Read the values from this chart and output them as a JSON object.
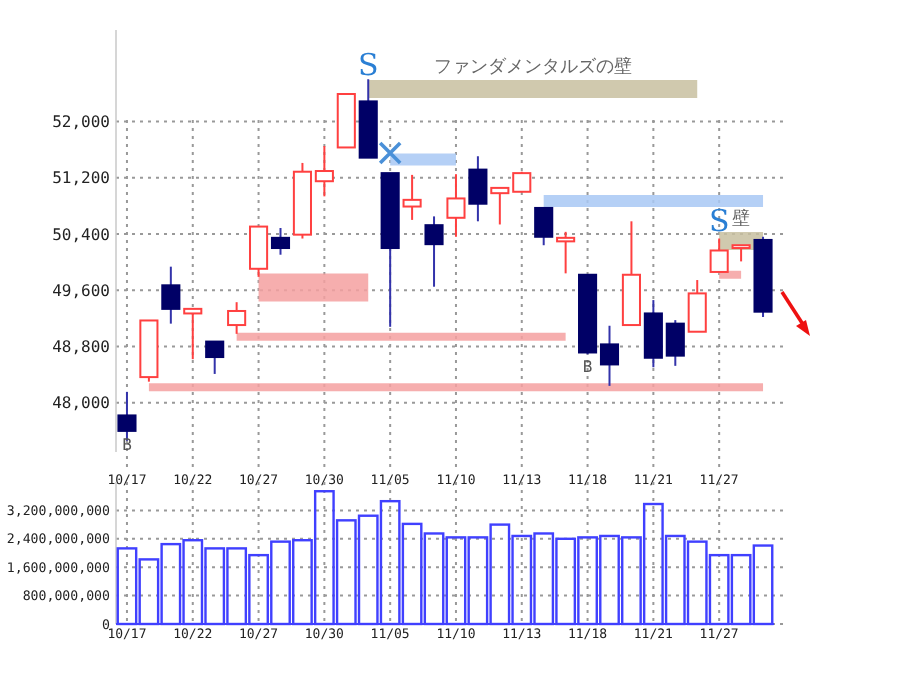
{
  "chart_data": [
    {
      "type": "candlestick",
      "categories": [
        "10/17",
        null,
        null,
        "10/22",
        null,
        null,
        "10/27",
        null,
        null,
        "10/30",
        null,
        null,
        "11/05",
        null,
        null,
        "11/10",
        null,
        null,
        "11/13",
        null,
        null,
        "11/18",
        null,
        null,
        "11/21",
        null,
        null,
        "11/27",
        null,
        null
      ],
      "ohlc": [
        [
          47820,
          48155,
          47460,
          47600
        ],
        [
          48365,
          49170,
          48300,
          49170
        ],
        [
          49670,
          49935,
          49125,
          49335
        ],
        [
          49270,
          49335,
          48620,
          49335
        ],
        [
          48870,
          48870,
          48410,
          48650
        ],
        [
          49105,
          49430,
          48980,
          49305
        ],
        [
          49905,
          50505,
          49790,
          50505
        ],
        [
          50345,
          50485,
          50105,
          50200
        ],
        [
          50390,
          51410,
          50335,
          51285
        ],
        [
          51150,
          51650,
          50935,
          51295
        ],
        [
          51630,
          52390,
          51630,
          52390
        ],
        [
          52285,
          52600,
          51485,
          51485
        ],
        [
          51265,
          51265,
          49080,
          50200
        ],
        [
          50790,
          51240,
          50600,
          50885
        ],
        [
          50525,
          50650,
          49650,
          50255
        ],
        [
          50630,
          51250,
          50360,
          50905
        ],
        [
          51315,
          51505,
          50580,
          50830
        ],
        [
          50980,
          51055,
          50535,
          51055
        ],
        [
          51000,
          51285,
          51000,
          51265
        ],
        [
          50770,
          50770,
          50240,
          50360
        ],
        [
          50295,
          50430,
          49840,
          50345
        ],
        [
          49820,
          49820,
          48690,
          48715
        ],
        [
          48830,
          49095,
          48240,
          48545
        ],
        [
          49105,
          50580,
          49105,
          49820
        ],
        [
          49270,
          49460,
          48505,
          48640
        ],
        [
          49125,
          49175,
          48525,
          48670
        ],
        [
          49010,
          49745,
          49010,
          49555
        ],
        [
          49860,
          50335,
          49860,
          50165
        ],
        [
          50200,
          50240,
          50010,
          50240
        ],
        [
          50315,
          50360,
          49220,
          49295
        ]
      ],
      "ylim": [
        47300,
        53300
      ],
      "yticks": [
        {
          "value": 48000,
          "label": "48,000"
        },
        {
          "value": 48800,
          "label": "48,800"
        },
        {
          "value": 49600,
          "label": "49,600"
        },
        {
          "value": 50400,
          "label": "50,400"
        },
        {
          "value": 51200,
          "label": "51,200"
        },
        {
          "value": 52000,
          "label": "52,000"
        }
      ],
      "grid": true,
      "series": [
        {
          "name": "ファンダメンタルズの壁",
          "type": "line",
          "color": "#c8bfa0",
          "values": [
            null,
            null,
            null,
            null,
            null,
            null,
            null,
            null,
            null,
            null,
            null,
            52460,
            52460,
            52460,
            52460,
            52460,
            52460,
            52460,
            52460,
            52460,
            52460,
            52460,
            52460,
            52460,
            52460,
            52460,
            52460,
            null,
            null,
            null
          ]
        },
        {
          "name": "壁",
          "type": "line",
          "color": "#c8bfa0",
          "values": [
            null,
            null,
            null,
            null,
            null,
            null,
            null,
            null,
            null,
            null,
            null,
            null,
            null,
            null,
            null,
            null,
            null,
            null,
            null,
            null,
            null,
            null,
            null,
            null,
            null,
            null,
            null,
            50300,
            50300,
            50300
          ]
        },
        {
          "type": "line",
          "color": "#a8c8f4",
          "values": [
            null,
            null,
            null,
            null,
            null,
            null,
            null,
            null,
            null,
            null,
            null,
            null,
            51460,
            51460,
            51460,
            51460,
            null,
            null,
            null,
            null,
            null,
            null,
            null,
            null,
            null,
            null,
            null,
            null,
            null,
            null
          ]
        },
        {
          "type": "line",
          "color": "#a8c8f4",
          "values": [
            null,
            null,
            null,
            null,
            null,
            null,
            null,
            null,
            null,
            null,
            null,
            null,
            null,
            null,
            null,
            null,
            null,
            null,
            null,
            50870,
            50870,
            50870,
            50870,
            50870,
            50870,
            50870,
            50870,
            50870,
            50870,
            50870
          ]
        },
        {
          "type": "line",
          "color": "#f4a0a0",
          "values": [
            null,
            null,
            null,
            null,
            null,
            null,
            49640,
            49640,
            49640,
            49640,
            49640,
            49640,
            null,
            null,
            null,
            null,
            null,
            null,
            null,
            null,
            null,
            null,
            null,
            null,
            null,
            null,
            null,
            null,
            null,
            null
          ]
        },
        {
          "type": "line",
          "color": "#f4a0a0",
          "values": [
            null,
            null,
            null,
            null,
            null,
            48940,
            48940,
            48940,
            48940,
            48940,
            48940,
            48940,
            48940,
            48940,
            48940,
            48940,
            48940,
            48940,
            48940,
            48940,
            48940,
            null,
            null,
            null,
            null,
            null,
            null,
            null,
            null,
            null
          ]
        },
        {
          "type": "line",
          "color": "#f4a0a0",
          "values": [
            null,
            48220,
            48220,
            48220,
            48220,
            48220,
            48220,
            48220,
            48220,
            48220,
            48220,
            48220,
            48220,
            48220,
            48220,
            48220,
            48220,
            48220,
            48220,
            48220,
            48220,
            48220,
            48220,
            48220,
            48220,
            48220,
            48220,
            48220,
            48220,
            48220
          ]
        },
        {
          "type": "line",
          "color": "#f4a0a0",
          "values": [
            null,
            null,
            null,
            null,
            null,
            null,
            null,
            null,
            null,
            null,
            null,
            null,
            null,
            null,
            null,
            null,
            null,
            null,
            null,
            null,
            null,
            null,
            null,
            null,
            null,
            null,
            null,
            49820,
            49820,
            null
          ]
        },
        {
          "type": "scatter",
          "color": "#4a90d8",
          "marker": "cross",
          "values": [
            null,
            null,
            null,
            null,
            null,
            null,
            null,
            null,
            null,
            null,
            null,
            null,
            51550,
            null,
            null,
            null,
            null,
            null,
            null,
            null,
            null,
            null,
            null,
            null,
            null,
            null,
            null,
            null,
            null,
            null
          ]
        }
      ],
      "annotations": [
        "S",
        "S",
        "B",
        "B"
      ]
    },
    {
      "type": "bar",
      "categories": [
        "10/17",
        null,
        null,
        "10/22",
        null,
        null,
        "10/27",
        null,
        null,
        "10/30",
        null,
        null,
        "11/05",
        null,
        null,
        "11/10",
        null,
        null,
        "11/13",
        null,
        null,
        "11/18",
        null,
        null,
        "11/21",
        null,
        null,
        "11/27",
        null,
        null
      ],
      "values": [
        2130000000,
        1820000000,
        2250000000,
        2360000000,
        2130000000,
        2130000000,
        1940000000,
        2320000000,
        2360000000,
        3740000000,
        2920000000,
        3050000000,
        3460000000,
        2820000000,
        2550000000,
        2440000000,
        2440000000,
        2800000000,
        2480000000,
        2550000000,
        2400000000,
        2440000000,
        2480000000,
        2440000000,
        3380000000,
        2480000000,
        2320000000,
        1940000000,
        1940000000,
        2210000000
      ],
      "color": "#4040ff",
      "ylim": [
        0,
        4000000000
      ],
      "yticks": [
        0,
        {
          "value": 800000000,
          "label": "800,000,000"
        },
        {
          "value": 1600000000,
          "label": "1,600,000,000"
        },
        {
          "value": 2400000000,
          "label": "2,400,000,000"
        },
        {
          "value": 3200000000,
          "label": "3,200,000,000"
        }
      ],
      "grid": true
    }
  ]
}
